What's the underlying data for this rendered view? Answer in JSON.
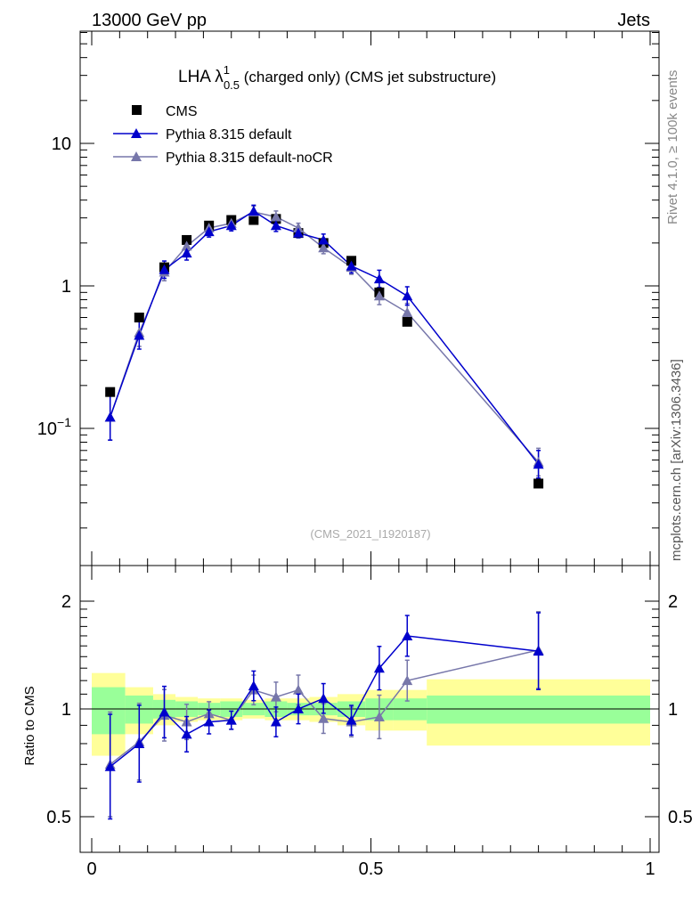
{
  "header": {
    "left": "13000 GeV pp",
    "right": "Jets"
  },
  "title": {
    "prefix": "LHA λ",
    "sup": "1",
    "sub": "0.5",
    "suffix": " (charged only) (CMS jet substructure)"
  },
  "side_labels": {
    "version": "Rivet 4.1.0, ≥ 100k events",
    "source": "mcplots.cern.ch [arXiv:1306.3436]"
  },
  "analysis_id": "(CMS_2021_I1920187)",
  "chart_data": [
    {
      "type": "scatter",
      "panel": "main",
      "yscale": "log",
      "xlim": [
        0,
        1
      ],
      "ylim": [
        0.02,
        50
      ],
      "yticks": [
        {
          "value": 0.1,
          "base": "10",
          "exp": "−1"
        },
        {
          "value": 1,
          "label": "1"
        },
        {
          "value": 10,
          "label": "10"
        }
      ],
      "x": [
        0.033,
        0.085,
        0.13,
        0.17,
        0.21,
        0.25,
        0.29,
        0.33,
        0.37,
        0.415,
        0.465,
        0.515,
        0.565,
        0.8
      ],
      "series": [
        {
          "name": "CMS",
          "color": "#000000",
          "marker": "square",
          "values": [
            0.18,
            0.6,
            1.35,
            2.1,
            2.65,
            2.9,
            2.9,
            2.95,
            2.35,
            2.0,
            1.5,
            0.9,
            0.56,
            0.041
          ]
        },
        {
          "name": "Pythia 8.315 default",
          "color": "#0000cc",
          "marker": "triangle",
          "values": [
            0.12,
            0.45,
            1.3,
            1.7,
            2.4,
            2.65,
            3.35,
            2.65,
            2.35,
            2.1,
            1.38,
            1.12,
            0.85,
            0.056
          ]
        },
        {
          "name": "Pythia 8.315 default-noCR",
          "color": "#7777aa",
          "marker": "triangle",
          "values": [
            0.12,
            0.47,
            1.25,
            1.9,
            2.55,
            2.75,
            3.3,
            3.05,
            2.55,
            1.85,
            1.35,
            0.85,
            0.65,
            0.058
          ]
        }
      ]
    },
    {
      "type": "scatter",
      "panel": "ratio",
      "ylabel": "Ratio to CMS",
      "xlim": [
        0,
        1
      ],
      "ylim": [
        0.4,
        2.3
      ],
      "yticks": [
        {
          "value": 0.5,
          "label": "0.5"
        },
        {
          "value": 1,
          "label": "1"
        },
        {
          "value": 2,
          "label": "2"
        }
      ],
      "xticks": [
        {
          "value": 0,
          "label": "0"
        },
        {
          "value": 0.5,
          "label": "0.5"
        },
        {
          "value": 1,
          "label": "1"
        }
      ],
      "x": [
        0.033,
        0.085,
        0.13,
        0.17,
        0.21,
        0.25,
        0.29,
        0.33,
        0.37,
        0.415,
        0.465,
        0.515,
        0.565,
        0.8
      ],
      "series": [
        {
          "name": "Pythia 8.315 default",
          "color": "#0000cc",
          "values": [
            0.69,
            0.8,
            0.98,
            0.85,
            0.92,
            0.93,
            1.16,
            0.92,
            1.0,
            1.07,
            0.93,
            1.3,
            1.6,
            1.45
          ]
        },
        {
          "name": "Pythia 8.315 default-noCR",
          "color": "#7777aa",
          "values": [
            0.7,
            0.81,
            0.96,
            0.92,
            0.97,
            0.93,
            1.13,
            1.08,
            1.13,
            0.94,
            0.92,
            0.95,
            1.2,
            1.46
          ]
        }
      ],
      "band_edges": [
        0,
        0.06,
        0.11,
        0.15,
        0.19,
        0.23,
        0.27,
        0.31,
        0.35,
        0.39,
        0.44,
        0.49,
        0.54,
        0.6,
        1.0
      ],
      "band_inner": [
        0.15,
        0.09,
        0.06,
        0.05,
        0.04,
        0.05,
        0.04,
        0.05,
        0.04,
        0.04,
        0.05,
        0.07,
        0.07,
        0.09
      ],
      "band_outer": [
        0.26,
        0.15,
        0.1,
        0.08,
        0.07,
        0.07,
        0.06,
        0.07,
        0.07,
        0.08,
        0.1,
        0.13,
        0.13,
        0.21
      ]
    }
  ]
}
